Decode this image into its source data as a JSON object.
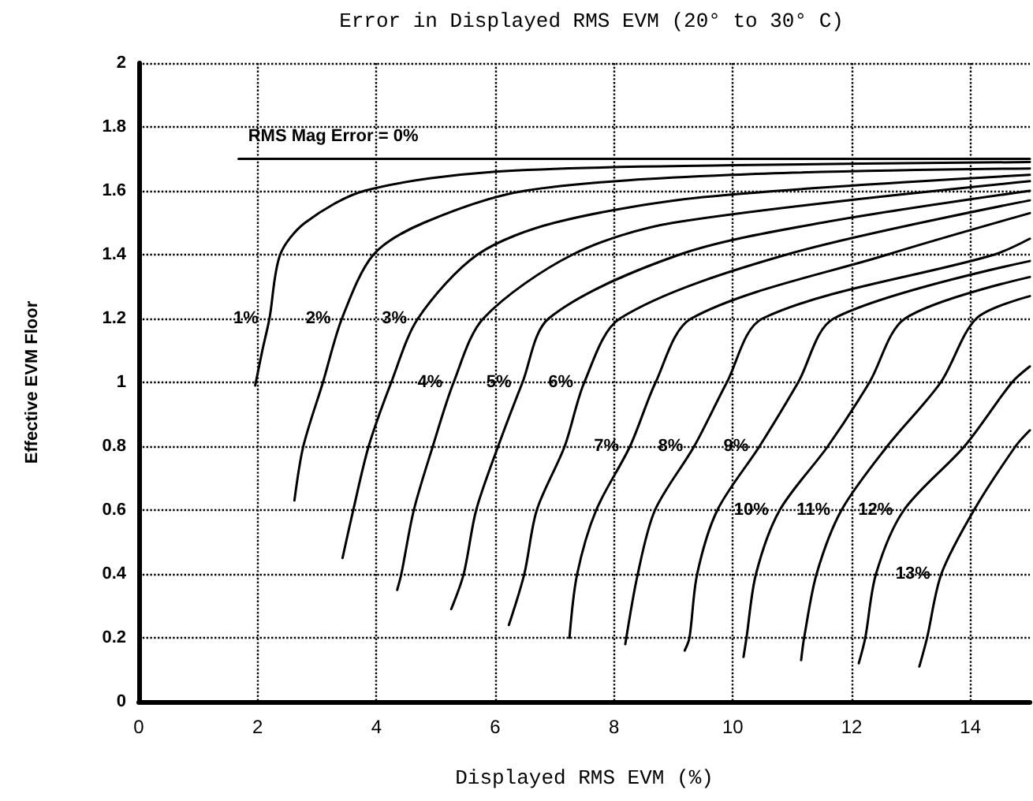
{
  "chart_data": {
    "type": "line",
    "title": "Error in Displayed RMS EVM (20° to 30° C)",
    "xlabel": "Displayed RMS EVM (%)",
    "ylabel": "Effective EVM Floor",
    "xlim": [
      0,
      15
    ],
    "xticks": [
      0,
      2,
      4,
      6,
      8,
      10,
      12,
      14
    ],
    "ylim": [
      0,
      2
    ],
    "yticks": [
      0,
      0.2,
      0.4,
      0.6,
      0.8,
      1,
      1.2,
      1.4,
      1.6,
      1.8,
      2
    ],
    "grid": true,
    "legend": false,
    "marker": "none",
    "line_style": "solid",
    "series": [
      {
        "name": "RMS Mag Error = 0%",
        "color": "#000000",
        "x": [
          1.68,
          15
        ],
        "values": [
          1.7,
          1.7
        ]
      },
      {
        "name": "1%",
        "color": "#000000",
        "x": [
          1.96,
          2.08,
          2.2,
          2.38,
          2.8,
          3.8,
          6,
          10,
          15
        ],
        "values": [
          0.99,
          1.1,
          1.2,
          1.4,
          1.5,
          1.6,
          1.66,
          1.68,
          1.69
        ]
      },
      {
        "name": "2%",
        "color": "#000000",
        "x": [
          2.62,
          2.77,
          3.1,
          3.42,
          3.95,
          4.8,
          6.5,
          10,
          15
        ],
        "values": [
          0.63,
          0.8,
          1.0,
          1.2,
          1.4,
          1.5,
          1.6,
          1.65,
          1.67
        ]
      },
      {
        "name": "3%",
        "color": "#000000",
        "x": [
          3.43,
          3.61,
          3.87,
          4.25,
          4.7,
          5.7,
          7,
          9.5,
          15
        ],
        "values": [
          0.45,
          0.6,
          0.8,
          1.0,
          1.2,
          1.4,
          1.5,
          1.58,
          1.65
        ]
      },
      {
        "name": "4%",
        "color": "#000000",
        "x": [
          4.35,
          4.42,
          4.63,
          4.95,
          5.3,
          5.8,
          7.3,
          9,
          15
        ],
        "values": [
          0.35,
          0.4,
          0.6,
          0.8,
          1.0,
          1.2,
          1.4,
          1.5,
          1.63
        ]
      },
      {
        "name": "5%",
        "color": "#000000",
        "x": [
          5.26,
          5.47,
          5.68,
          6.05,
          6.46,
          6.9,
          9.1,
          11.5,
          15
        ],
        "values": [
          0.29,
          0.4,
          0.6,
          0.8,
          1.0,
          1.2,
          1.4,
          1.5,
          1.6
        ]
      },
      {
        "name": "6%",
        "color": "#000000",
        "x": [
          6.23,
          6.49,
          6.7,
          7.17,
          7.5,
          8.1,
          10.9,
          15
        ],
        "values": [
          0.24,
          0.4,
          0.6,
          0.8,
          1.0,
          1.2,
          1.4,
          1.57
        ]
      },
      {
        "name": "7%",
        "color": "#000000",
        "x": [
          7.25,
          7.38,
          7.7,
          8.27,
          8.7,
          9.3,
          12.6,
          15
        ],
        "values": [
          0.2,
          0.4,
          0.6,
          0.8,
          1.0,
          1.2,
          1.4,
          1.53
        ]
      },
      {
        "name": "8%",
        "color": "#000000",
        "x": [
          8.19,
          8.4,
          8.69,
          9.35,
          9.9,
          10.5,
          14.4,
          15
        ],
        "values": [
          0.18,
          0.4,
          0.6,
          0.8,
          1.0,
          1.2,
          1.4,
          1.45
        ]
      },
      {
        "name": "9%",
        "color": "#000000",
        "x": [
          9.19,
          9.27,
          9.4,
          9.74,
          10.45,
          11.1,
          11.7,
          15
        ],
        "values": [
          0.16,
          0.2,
          0.4,
          0.6,
          0.8,
          1.0,
          1.2,
          1.38
        ]
      },
      {
        "name": "10%",
        "color": "#000000",
        "x": [
          10.18,
          10.23,
          10.39,
          10.79,
          11.6,
          12.3,
          12.9,
          15
        ],
        "values": [
          0.14,
          0.2,
          0.4,
          0.6,
          0.8,
          1.0,
          1.2,
          1.33
        ]
      },
      {
        "name": "11%",
        "color": "#000000",
        "x": [
          11.15,
          11.2,
          11.41,
          11.83,
          12.6,
          13.5,
          14.1,
          15
        ],
        "values": [
          0.13,
          0.2,
          0.4,
          0.6,
          0.8,
          1.0,
          1.2,
          1.27
        ]
      },
      {
        "name": "12%",
        "color": "#000000",
        "x": [
          12.12,
          12.23,
          12.41,
          12.88,
          13.9,
          14.7,
          15
        ],
        "values": [
          0.12,
          0.2,
          0.4,
          0.6,
          0.8,
          1.0,
          1.05
        ]
      },
      {
        "name": "13%",
        "color": "#000000",
        "x": [
          13.14,
          13.27,
          13.51,
          14.06,
          14.76,
          15
        ],
        "values": [
          0.11,
          0.2,
          0.4,
          0.6,
          0.8,
          0.85
        ]
      }
    ]
  }
}
